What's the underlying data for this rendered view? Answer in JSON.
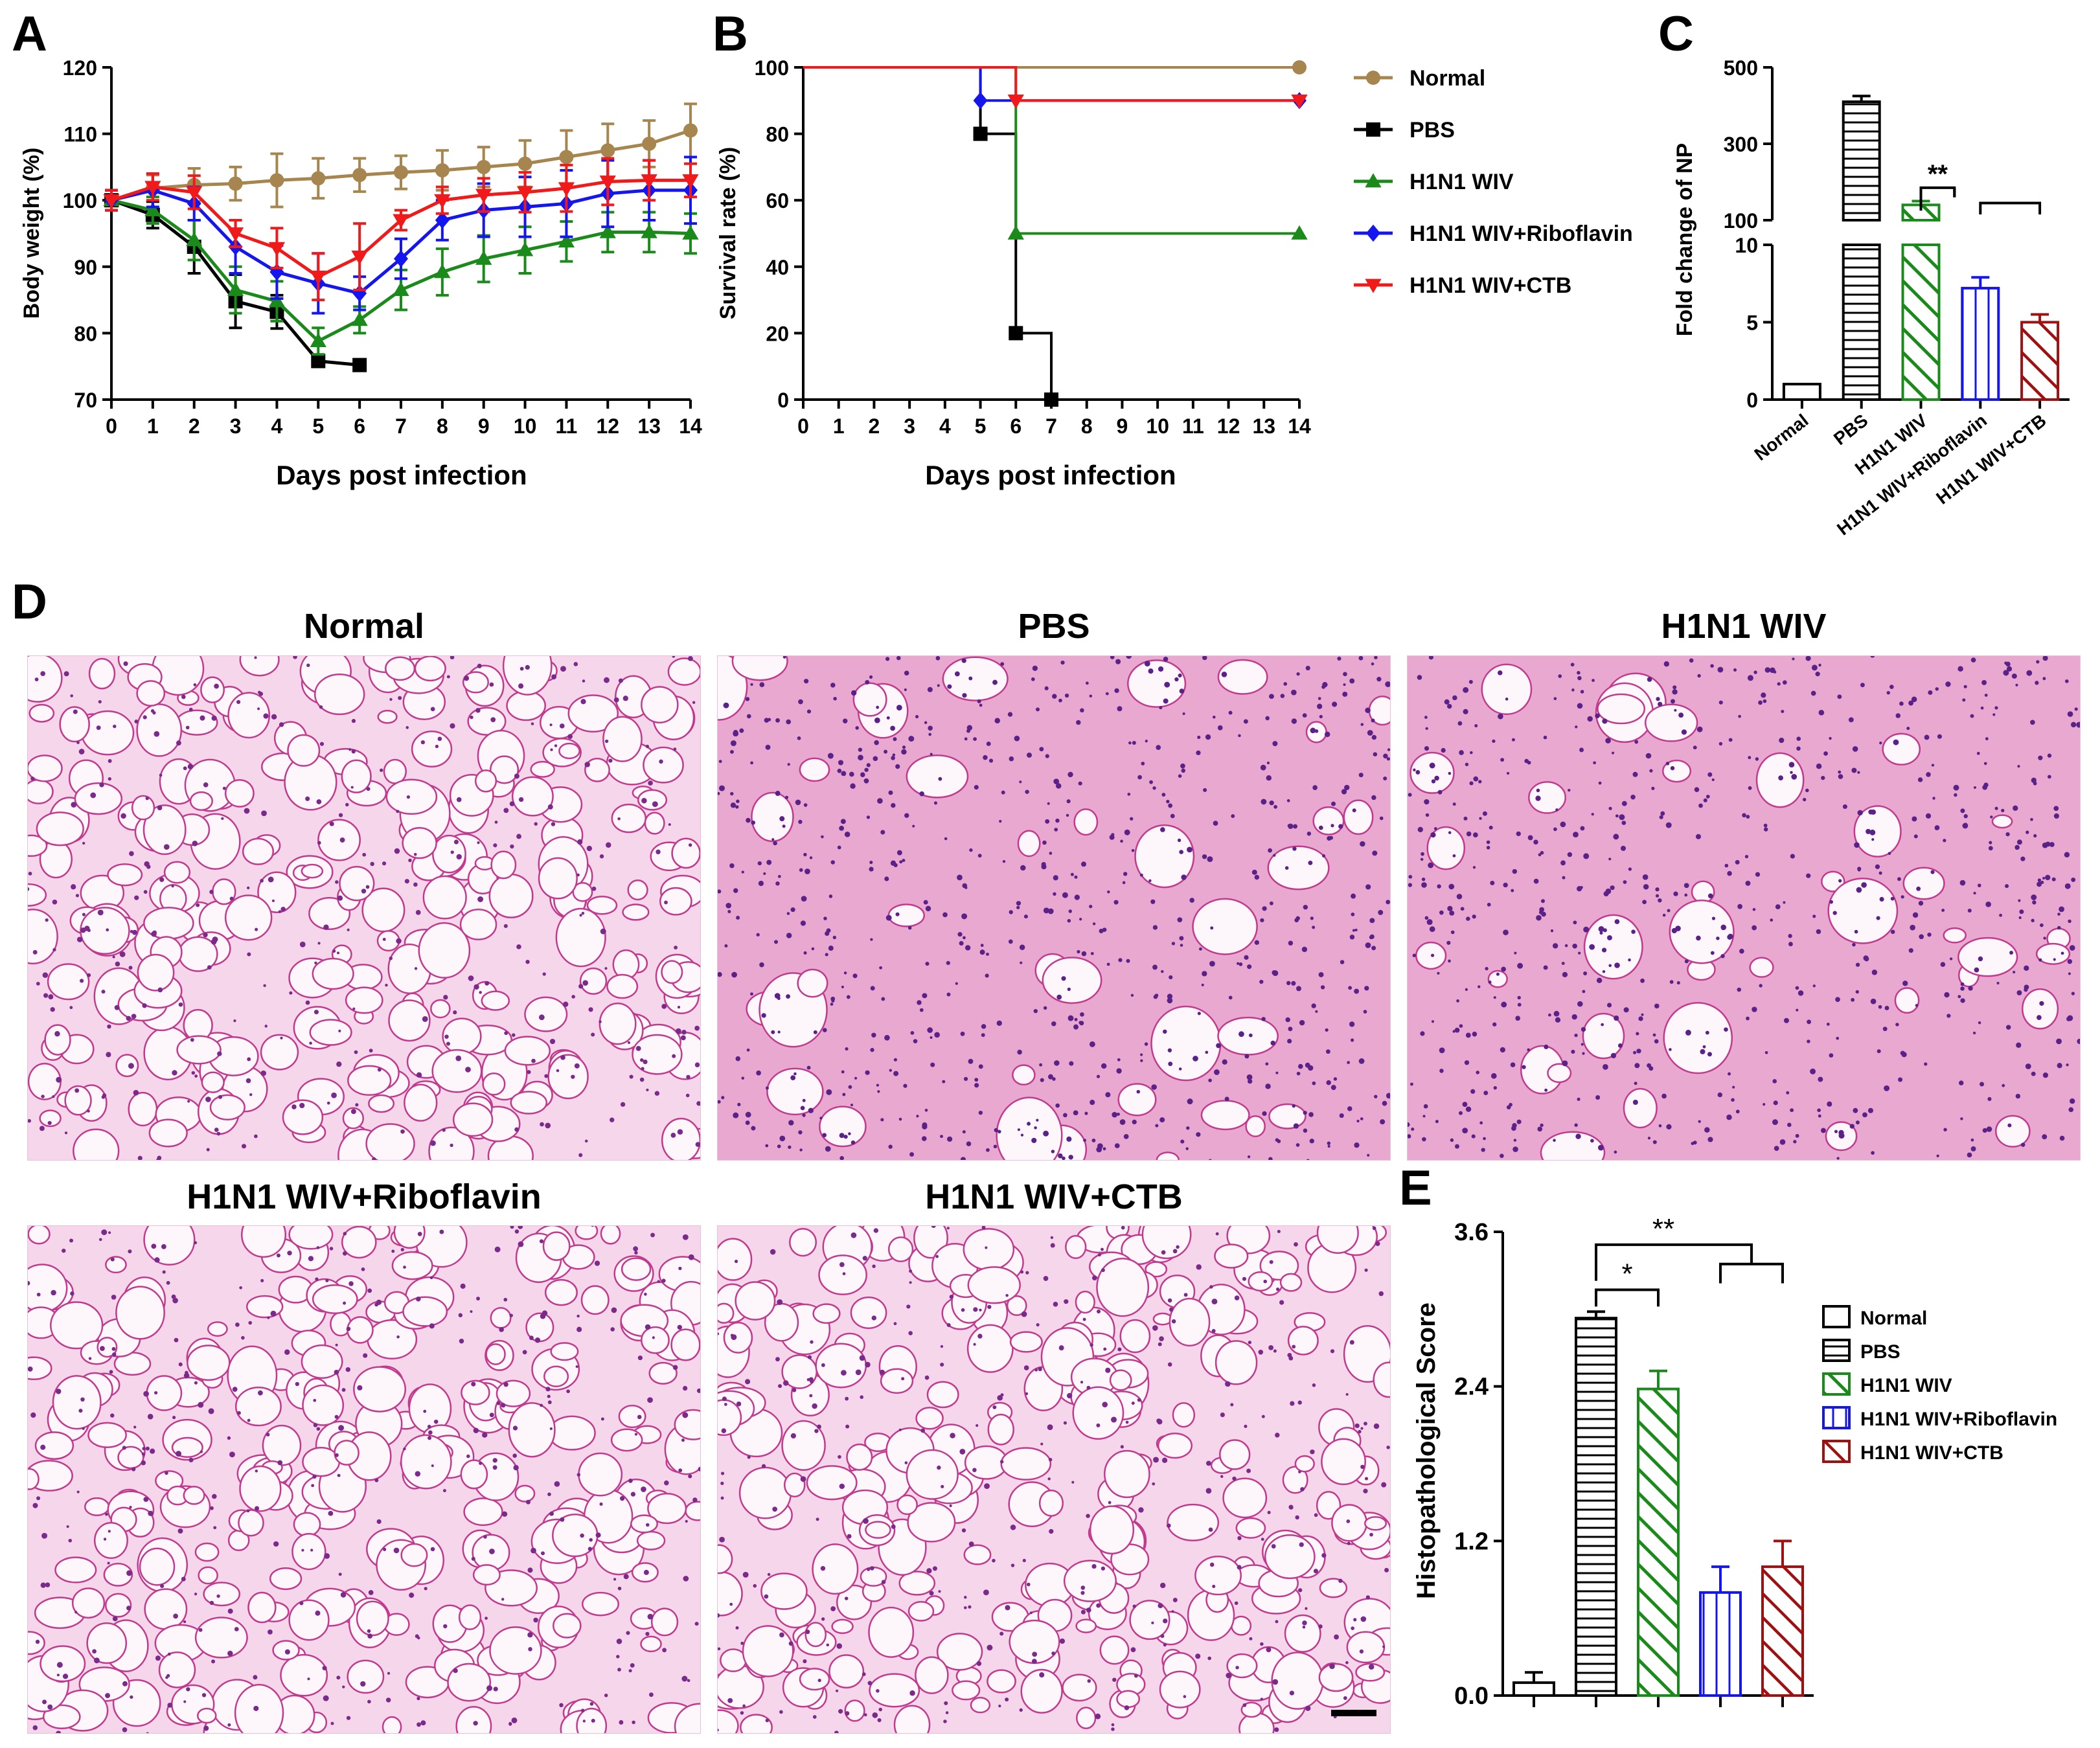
{
  "figure": {
    "panel_labels": [
      "A",
      "B",
      "C",
      "D",
      "E"
    ],
    "colors": {
      "Normal": "#a6854e",
      "PBS": "#000000",
      "H1N1 WIV": "#1a8a1a",
      "H1N1 WIV+Riboflavin": "#1515f0",
      "H1N1 WIV+CTB": "#f01a1a",
      "CTB_bar": "#a01010",
      "histo_bg": "#fbeef6",
      "histo_cell": "#c23a8e",
      "histo_nucleus": "#4a1d7a"
    }
  },
  "panelD": {
    "titles": [
      "Normal",
      "PBS",
      "H1N1 WIV",
      "H1N1 WIV+Riboflavin",
      "H1N1 WIV+CTB"
    ]
  },
  "chart_data": [
    {
      "id": "A",
      "type": "line",
      "xlabel": "Days post infection",
      "ylabel": "Body weight (%)",
      "xlim": [
        0,
        14
      ],
      "ylim": [
        70,
        120
      ],
      "xticks": [
        0,
        1,
        2,
        3,
        4,
        5,
        6,
        7,
        8,
        9,
        10,
        11,
        12,
        13,
        14
      ],
      "yticks": [
        70,
        80,
        90,
        100,
        110,
        120
      ],
      "series": [
        {
          "name": "Normal",
          "marker": "circle",
          "x": [
            0,
            1,
            2,
            3,
            4,
            5,
            6,
            7,
            8,
            9,
            10,
            11,
            12,
            13,
            14
          ],
          "values": [
            100,
            101.8,
            102.3,
            102.5,
            103,
            103.3,
            103.8,
            104.2,
            104.5,
            105,
            105.5,
            106.5,
            107.5,
            108.5,
            110.5
          ],
          "err": [
            1.5,
            2,
            2.5,
            2.5,
            4,
            3,
            2.5,
            2.5,
            3,
            3,
            3.5,
            4,
            4,
            3.5,
            4
          ]
        },
        {
          "name": "PBS",
          "marker": "square",
          "x": [
            0,
            1,
            2,
            3,
            4,
            5,
            6
          ],
          "values": [
            100,
            97.8,
            93,
            84.8,
            83.2,
            75.8,
            75.2
          ],
          "err": [
            1.5,
            2,
            4,
            4,
            2.5,
            0,
            0
          ]
        },
        {
          "name": "H1N1 WIV",
          "marker": "triangle",
          "x": [
            0,
            1,
            2,
            3,
            4,
            5,
            6,
            7,
            8,
            9,
            10,
            11,
            12,
            13,
            14
          ],
          "values": [
            100,
            98.5,
            94,
            86.5,
            84.8,
            78.8,
            82,
            86.5,
            89.2,
            91.2,
            92.5,
            93.8,
            95.2,
            95.2,
            95
          ],
          "err": [
            1.5,
            2,
            3,
            3.5,
            3,
            2,
            2,
            3,
            3.5,
            3.5,
            3.5,
            3,
            3,
            3,
            3
          ]
        },
        {
          "name": "H1N1 WIV+Riboflavin",
          "marker": "diamond",
          "x": [
            0,
            1,
            2,
            3,
            4,
            5,
            6,
            7,
            8,
            9,
            10,
            11,
            12,
            13,
            14
          ],
          "values": [
            100,
            101.5,
            99.5,
            93,
            89.2,
            87.5,
            86,
            91.2,
            97,
            98.5,
            99,
            99.5,
            101,
            101.5,
            101.5
          ],
          "err": [
            1.5,
            2.5,
            2.5,
            4,
            4,
            4.5,
            2.5,
            3,
            3,
            4,
            4.5,
            5,
            5,
            4.5,
            5
          ]
        },
        {
          "name": "H1N1 WIV+CTB",
          "marker": "triangle-down",
          "x": [
            0,
            1,
            2,
            3,
            4,
            5,
            6,
            7,
            8,
            9,
            10,
            11,
            12,
            13,
            14
          ],
          "values": [
            100,
            102,
            101.2,
            95,
            92.8,
            88.5,
            91.5,
            97,
            100,
            100.8,
            101.2,
            101.8,
            102.8,
            103,
            103
          ],
          "err": [
            1.5,
            2,
            2.5,
            2,
            3,
            3.5,
            5,
            1.5,
            2,
            2.5,
            3,
            3.5,
            3.5,
            3,
            2.5
          ]
        }
      ]
    },
    {
      "id": "B",
      "type": "line",
      "step": true,
      "xlabel": "Days post infection",
      "ylabel": "Survival rate (%)",
      "xlim": [
        0,
        14
      ],
      "ylim": [
        0,
        100
      ],
      "xticks": [
        0,
        1,
        2,
        3,
        4,
        5,
        6,
        7,
        8,
        9,
        10,
        11,
        12,
        13,
        14
      ],
      "yticks": [
        0,
        20,
        40,
        60,
        80,
        100
      ],
      "series": [
        {
          "name": "Normal",
          "marker": "circle",
          "x": [
            0,
            14
          ],
          "values": [
            100,
            100
          ],
          "points": [
            [
              14,
              100
            ]
          ]
        },
        {
          "name": "PBS",
          "marker": "square",
          "x": [
            0,
            5,
            6,
            7
          ],
          "values": [
            100,
            80,
            20,
            0
          ],
          "points": [
            [
              5,
              80
            ],
            [
              6,
              20
            ],
            [
              7,
              0
            ]
          ]
        },
        {
          "name": "H1N1 WIV",
          "marker": "triangle",
          "x": [
            0,
            6,
            14
          ],
          "values": [
            100,
            50,
            50
          ],
          "points": [
            [
              6,
              50
            ],
            [
              14,
              50
            ]
          ]
        },
        {
          "name": "H1N1 WIV+Riboflavin",
          "marker": "diamond",
          "x": [
            0,
            5,
            14
          ],
          "values": [
            100,
            90,
            90
          ],
          "points": [
            [
              5,
              90
            ],
            [
              14,
              90
            ]
          ]
        },
        {
          "name": "H1N1 WIV+CTB",
          "marker": "triangle-down",
          "x": [
            0,
            6,
            14
          ],
          "values": [
            100,
            90,
            90
          ],
          "points": [
            [
              6,
              90
            ],
            [
              14,
              90
            ]
          ]
        }
      ],
      "legend": [
        "Normal",
        "PBS",
        "H1N1 WIV",
        "H1N1 WIV+Riboflavin",
        "H1N1 WIV+CTB"
      ]
    },
    {
      "id": "C",
      "type": "bar",
      "broken_axis": true,
      "ylabel": "Fold change of NP",
      "categories": [
        "Normal",
        "PBS",
        "H1N1 WIV",
        "H1N1 WIV+Riboflavin",
        "H1N1 WIV+CTB"
      ],
      "values": [
        1,
        410,
        140,
        7.2,
        5
      ],
      "err": [
        0,
        15,
        10,
        0.7,
        0.5
      ],
      "hatch": [
        "none",
        "horizontal",
        "diagonal",
        "vertical",
        "diagonal"
      ],
      "yticks_lower": [
        0,
        5,
        10
      ],
      "yticks_upper": [
        100,
        300,
        500
      ],
      "ylim_lower": [
        0,
        10
      ],
      "ylim_upper": [
        100,
        500
      ],
      "significance": [
        {
          "label": "**",
          "from": "H1N1 WIV",
          "to": [
            "H1N1 WIV+Riboflavin",
            "H1N1 WIV+CTB"
          ]
        }
      ]
    },
    {
      "id": "E",
      "type": "bar",
      "ylabel": "Histopathological Score",
      "categories": [
        "Normal",
        "PBS",
        "H1N1 WIV",
        "H1N1 WIV+Riboflavin",
        "H1N1 WIV+CTB"
      ],
      "values": [
        0.1,
        2.93,
        2.38,
        0.8,
        1.0
      ],
      "err": [
        0.08,
        0.05,
        0.14,
        0.2,
        0.2
      ],
      "hatch": [
        "none",
        "horizontal",
        "diagonal",
        "vertical",
        "diagonal"
      ],
      "ylim": [
        0,
        3.6
      ],
      "yticks": [
        "0.0",
        "1.2",
        "2.4",
        "3.6"
      ],
      "significance": [
        {
          "label": "*",
          "from": "PBS",
          "to": [
            "H1N1 WIV"
          ]
        },
        {
          "label": "**",
          "from": "PBS",
          "to": [
            "H1N1 WIV+Riboflavin",
            "H1N1 WIV+CTB"
          ]
        }
      ],
      "legend": [
        "Normal",
        "PBS",
        "H1N1 WIV",
        "H1N1 WIV+Riboflavin",
        "H1N1 WIV+CTB"
      ]
    }
  ]
}
